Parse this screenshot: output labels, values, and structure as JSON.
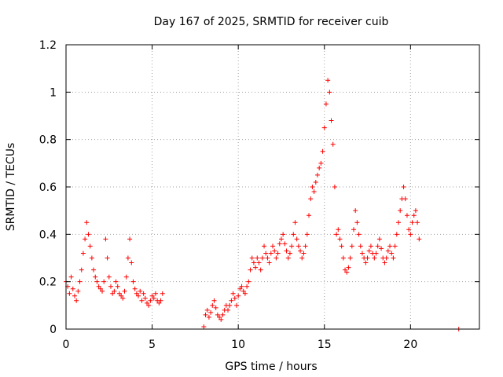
{
  "chart_data": {
    "type": "scatter",
    "title": "Day 167 of 2025, SRMTID for receiver cuib",
    "xlabel": "GPS time / hours",
    "ylabel": "SRMTID / TECUs",
    "xlim": [
      0,
      24
    ],
    "ylim": [
      0,
      1.2
    ],
    "xticks": [
      0,
      5,
      10,
      15,
      20
    ],
    "xtick_labels": [
      "0",
      "5",
      "10",
      "15",
      "20"
    ],
    "yticks": [
      0,
      0.2,
      0.4,
      0.6,
      0.8,
      1.0,
      1.2
    ],
    "ytick_labels": [
      "0",
      "0.2",
      "0.4",
      "0.6",
      "0.8",
      "1",
      "1.2"
    ],
    "grid": true,
    "marker": "plus",
    "color": "#ff0000",
    "series": [
      {
        "name": "SRMTID",
        "x": [
          0.0,
          0.1,
          0.2,
          0.3,
          0.4,
          0.5,
          0.6,
          0.7,
          0.8,
          0.9,
          1.0,
          1.1,
          1.2,
          1.3,
          1.4,
          1.5,
          1.6,
          1.7,
          1.8,
          1.9,
          2.0,
          2.1,
          2.2,
          2.3,
          2.4,
          2.5,
          2.6,
          2.7,
          2.8,
          2.9,
          3.0,
          3.1,
          3.2,
          3.3,
          3.4,
          3.5,
          3.6,
          3.7,
          3.8,
          3.9,
          4.0,
          4.1,
          4.2,
          4.3,
          4.4,
          4.5,
          4.6,
          4.7,
          4.8,
          4.9,
          5.0,
          5.1,
          5.2,
          5.3,
          5.4,
          5.5,
          5.6,
          8.0,
          8.1,
          8.2,
          8.3,
          8.4,
          8.5,
          8.6,
          8.7,
          8.8,
          8.9,
          9.0,
          9.1,
          9.2,
          9.3,
          9.4,
          9.5,
          9.6,
          9.7,
          9.8,
          9.9,
          10.0,
          10.1,
          10.2,
          10.3,
          10.4,
          10.5,
          10.6,
          10.7,
          10.8,
          10.9,
          11.0,
          11.1,
          11.2,
          11.3,
          11.4,
          11.5,
          11.6,
          11.7,
          11.8,
          11.9,
          12.0,
          12.1,
          12.2,
          12.3,
          12.4,
          12.5,
          12.6,
          12.7,
          12.8,
          12.9,
          13.0,
          13.1,
          13.2,
          13.3,
          13.4,
          13.5,
          13.6,
          13.7,
          13.8,
          13.9,
          14.0,
          14.1,
          14.2,
          14.3,
          14.4,
          14.5,
          14.6,
          14.7,
          14.8,
          14.9,
          15.0,
          15.1,
          15.2,
          15.3,
          15.4,
          15.5,
          15.6,
          15.7,
          15.8,
          15.9,
          16.0,
          16.1,
          16.2,
          16.3,
          16.4,
          16.5,
          16.6,
          16.7,
          16.8,
          16.9,
          17.0,
          17.1,
          17.2,
          17.3,
          17.4,
          17.5,
          17.6,
          17.7,
          17.8,
          17.9,
          18.0,
          18.1,
          18.2,
          18.3,
          18.4,
          18.5,
          18.6,
          18.7,
          18.8,
          18.9,
          19.0,
          19.1,
          19.2,
          19.3,
          19.4,
          19.5,
          19.6,
          19.7,
          19.8,
          19.9,
          20.0,
          20.1,
          20.2,
          20.3,
          20.4,
          20.5,
          22.8
        ],
        "y": [
          0.2,
          0.18,
          0.15,
          0.22,
          0.17,
          0.14,
          0.12,
          0.16,
          0.2,
          0.25,
          0.32,
          0.38,
          0.45,
          0.4,
          0.35,
          0.3,
          0.25,
          0.22,
          0.2,
          0.18,
          0.17,
          0.16,
          0.2,
          0.38,
          0.3,
          0.22,
          0.18,
          0.15,
          0.16,
          0.2,
          0.18,
          0.15,
          0.14,
          0.13,
          0.16,
          0.22,
          0.3,
          0.38,
          0.28,
          0.2,
          0.17,
          0.15,
          0.14,
          0.16,
          0.12,
          0.15,
          0.13,
          0.11,
          0.1,
          0.12,
          0.14,
          0.13,
          0.15,
          0.12,
          0.11,
          0.12,
          0.15,
          0.01,
          0.06,
          0.08,
          0.05,
          0.07,
          0.1,
          0.12,
          0.09,
          0.06,
          0.05,
          0.04,
          0.06,
          0.08,
          0.1,
          0.08,
          0.1,
          0.12,
          0.15,
          0.13,
          0.1,
          0.14,
          0.17,
          0.18,
          0.16,
          0.15,
          0.18,
          0.2,
          0.25,
          0.3,
          0.28,
          0.26,
          0.3,
          0.28,
          0.25,
          0.3,
          0.35,
          0.32,
          0.3,
          0.28,
          0.32,
          0.35,
          0.33,
          0.3,
          0.32,
          0.36,
          0.38,
          0.4,
          0.36,
          0.33,
          0.3,
          0.32,
          0.35,
          0.4,
          0.45,
          0.38,
          0.35,
          0.33,
          0.3,
          0.32,
          0.35,
          0.4,
          0.48,
          0.55,
          0.6,
          0.58,
          0.62,
          0.65,
          0.68,
          0.7,
          0.75,
          0.85,
          0.95,
          1.05,
          1.0,
          0.88,
          0.78,
          0.6,
          0.4,
          0.42,
          0.38,
          0.35,
          0.3,
          0.25,
          0.24,
          0.26,
          0.3,
          0.35,
          0.42,
          0.5,
          0.45,
          0.4,
          0.35,
          0.32,
          0.3,
          0.28,
          0.3,
          0.33,
          0.35,
          0.32,
          0.3,
          0.32,
          0.35,
          0.38,
          0.34,
          0.3,
          0.28,
          0.3,
          0.33,
          0.35,
          0.32,
          0.3,
          0.35,
          0.4,
          0.45,
          0.5,
          0.55,
          0.6,
          0.55,
          0.48,
          0.42,
          0.4,
          0.45,
          0.48,
          0.5,
          0.45,
          0.38,
          0.0
        ]
      }
    ]
  }
}
